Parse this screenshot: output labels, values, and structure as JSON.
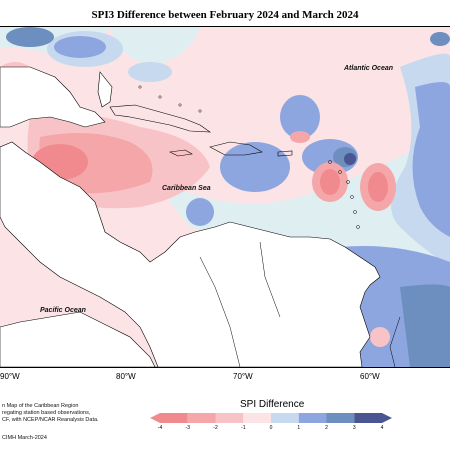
{
  "title": "SPI3 Difference between February 2024 and March 2024",
  "labels": {
    "atlantic": "Atlantic Ocean",
    "caribbean": "Caribbean Sea",
    "pacific": "Pacific Ocean"
  },
  "longitudes": [
    "90°W",
    "80°W",
    "70°W",
    "60°W"
  ],
  "footnote": {
    "line1": "n Map of the Caribbean Region",
    "line2": "regating station based observations,",
    "line3": "CF, with NCEP/NCAR Reanalysis Data.",
    "line4": "CIMH March-2024"
  },
  "legend": {
    "title": "SPI Difference",
    "ticks": [
      "-4",
      "-3",
      "-2",
      "-1",
      "0",
      "1",
      "2",
      "3",
      "4"
    ],
    "colors": [
      "#f08a8f",
      "#f4a6a9",
      "#f8c3c6",
      "#fbe3e6",
      "#dfeef0",
      "#c6d9ee",
      "#8ea6df",
      "#6c8fbf",
      "#4b5591"
    ]
  }
}
